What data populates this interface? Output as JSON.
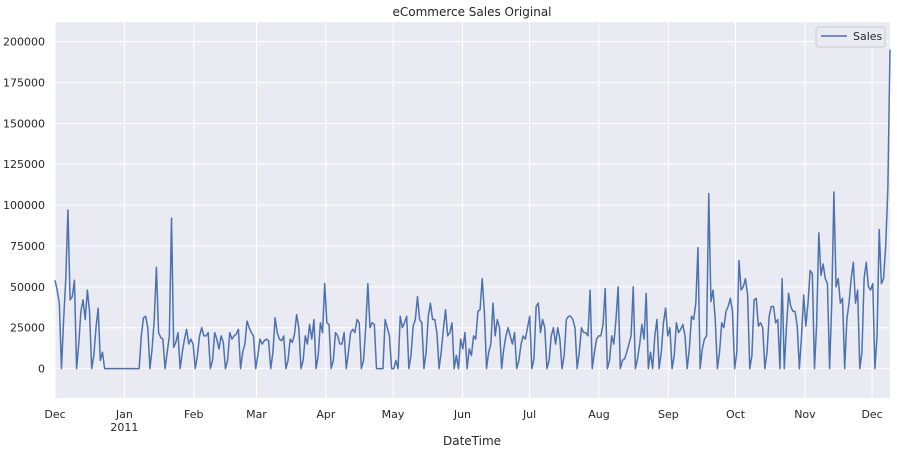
{
  "chart_data": {
    "type": "line",
    "title": "eCommerce Sales Original",
    "xlabel": "DateTime",
    "ylabel": "",
    "ylim": [
      -18000,
      212000
    ],
    "yticks": [
      0,
      25000,
      50000,
      75000,
      100000,
      125000,
      150000,
      175000,
      200000
    ],
    "ytick_labels": [
      "0",
      "25000",
      "50000",
      "75000",
      "100000",
      "125000",
      "150000",
      "175000",
      "200000"
    ],
    "x_start": "2010-12-01",
    "x_end": "2011-12-09",
    "xticks": [
      {
        "date": "2010-12-01",
        "label": "Dec",
        "sublabel": ""
      },
      {
        "date": "2011-01-01",
        "label": "Jan",
        "sublabel": "2011"
      },
      {
        "date": "2011-02-01",
        "label": "Feb",
        "sublabel": ""
      },
      {
        "date": "2011-03-01",
        "label": "Mar",
        "sublabel": ""
      },
      {
        "date": "2011-04-01",
        "label": "Apr",
        "sublabel": ""
      },
      {
        "date": "2011-05-01",
        "label": "May",
        "sublabel": ""
      },
      {
        "date": "2011-06-01",
        "label": "Jun",
        "sublabel": ""
      },
      {
        "date": "2011-07-01",
        "label": "Jul",
        "sublabel": ""
      },
      {
        "date": "2011-08-01",
        "label": "Aug",
        "sublabel": ""
      },
      {
        "date": "2011-09-01",
        "label": "Sep",
        "sublabel": ""
      },
      {
        "date": "2011-10-01",
        "label": "Oct",
        "sublabel": ""
      },
      {
        "date": "2011-11-01",
        "label": "Nov",
        "sublabel": ""
      },
      {
        "date": "2011-12-01",
        "label": "Dec",
        "sublabel": ""
      }
    ],
    "grid": true,
    "legend": {
      "position": "top-right",
      "entries": [
        "Sales"
      ]
    },
    "colors": {
      "line": "#4c72b0",
      "plot_bg": "#eaeaf2",
      "grid": "#ffffff"
    },
    "series": [
      {
        "name": "Sales",
        "values": [
          54000,
          48000,
          40000,
          0,
          30000,
          55000,
          97000,
          42000,
          44000,
          54000,
          0,
          15000,
          35000,
          42000,
          30000,
          48000,
          35000,
          0,
          8000,
          25000,
          37000,
          5000,
          10000,
          0,
          0,
          0,
          0,
          0,
          0,
          0,
          0,
          0,
          0,
          0,
          0,
          0,
          0,
          0,
          0,
          0,
          20000,
          31000,
          32000,
          25000,
          0,
          12000,
          30000,
          62000,
          22000,
          19000,
          18000,
          0,
          10000,
          20000,
          92000,
          13000,
          16000,
          22000,
          0,
          10000,
          18000,
          24000,
          15000,
          18000,
          15000,
          0,
          8000,
          20000,
          25000,
          20000,
          20000,
          22000,
          0,
          5000,
          22000,
          18000,
          12000,
          20000,
          16000,
          0,
          5000,
          22000,
          18000,
          20000,
          21000,
          24000,
          0,
          10000,
          15000,
          29000,
          25000,
          22000,
          20000,
          0,
          8000,
          18000,
          15000,
          17000,
          18000,
          17000,
          0,
          10000,
          31000,
          22000,
          18000,
          17000,
          20000,
          0,
          5000,
          18000,
          16000,
          21000,
          33000,
          25000,
          0,
          5000,
          20000,
          15000,
          27000,
          18000,
          30000,
          0,
          8000,
          28000,
          22000,
          52000,
          28000,
          27000,
          0,
          5000,
          22000,
          20000,
          15000,
          15000,
          22000,
          0,
          10000,
          22000,
          24000,
          22000,
          30000,
          28000,
          0,
          5000,
          25000,
          52000,
          25000,
          28000,
          27000,
          0,
          0,
          0,
          0,
          30000,
          25000,
          20000,
          0,
          0,
          5000,
          0,
          32000,
          25000,
          28000,
          32000,
          0,
          8000,
          26000,
          30000,
          44000,
          30000,
          28000,
          0,
          10000,
          32000,
          40000,
          30000,
          30000,
          22000,
          0,
          10000,
          24000,
          36000,
          20000,
          22000,
          28000,
          0,
          8000,
          0,
          18000,
          12000,
          22000,
          0,
          12000,
          8000,
          20000,
          18000,
          35000,
          36000,
          55000,
          35000,
          0,
          10000,
          15000,
          40000,
          20000,
          30000,
          25000,
          0,
          12000,
          20000,
          25000,
          20000,
          15000,
          22000,
          0,
          5000,
          15000,
          20000,
          18000,
          25000,
          32000,
          0,
          6000,
          38000,
          40000,
          22000,
          30000,
          25000,
          0,
          5000,
          20000,
          25000,
          15000,
          25000,
          18000,
          0,
          8000,
          30000,
          32000,
          32000,
          30000,
          25000,
          0,
          10000,
          25000,
          22000,
          22000,
          20000,
          48000,
          0,
          10000,
          18000,
          20000,
          20000,
          27000,
          49000,
          0,
          5000,
          20000,
          15000,
          30000,
          50000,
          0,
          5000,
          6000,
          10000,
          15000,
          20000,
          50000,
          0,
          6000,
          15000,
          27000,
          18000,
          46000,
          0,
          10000,
          0,
          20000,
          30000,
          0,
          10000,
          28000,
          37000,
          20000,
          25000,
          0,
          8000,
          28000,
          22000,
          24000,
          27000,
          20000,
          0,
          12000,
          32000,
          30000,
          40000,
          74000,
          0,
          12000,
          18000,
          20000,
          107000,
          41000,
          48000,
          30000,
          0,
          10000,
          28000,
          25000,
          35000,
          38000,
          43000,
          35000,
          0,
          10000,
          66000,
          48000,
          50000,
          55000,
          45000,
          0,
          8000,
          42000,
          43000,
          26000,
          28000,
          25000,
          0,
          10000,
          32000,
          38000,
          38000,
          28000,
          30000,
          0,
          55000,
          0,
          25000,
          46000,
          38000,
          35000,
          35000,
          26000,
          0,
          20000,
          45000,
          26000,
          40000,
          60000,
          58000,
          0,
          27000,
          83000,
          57000,
          64000,
          55000,
          52000,
          0,
          40000,
          108000,
          50000,
          55000,
          40000,
          43000,
          0,
          30000,
          40000,
          55000,
          65000,
          40000,
          48000,
          0,
          10000,
          55000,
          65000,
          50000,
          48000,
          52000,
          0,
          20000,
          85000,
          52000,
          55000,
          75000,
          110000,
          195000
        ]
      }
    ]
  }
}
